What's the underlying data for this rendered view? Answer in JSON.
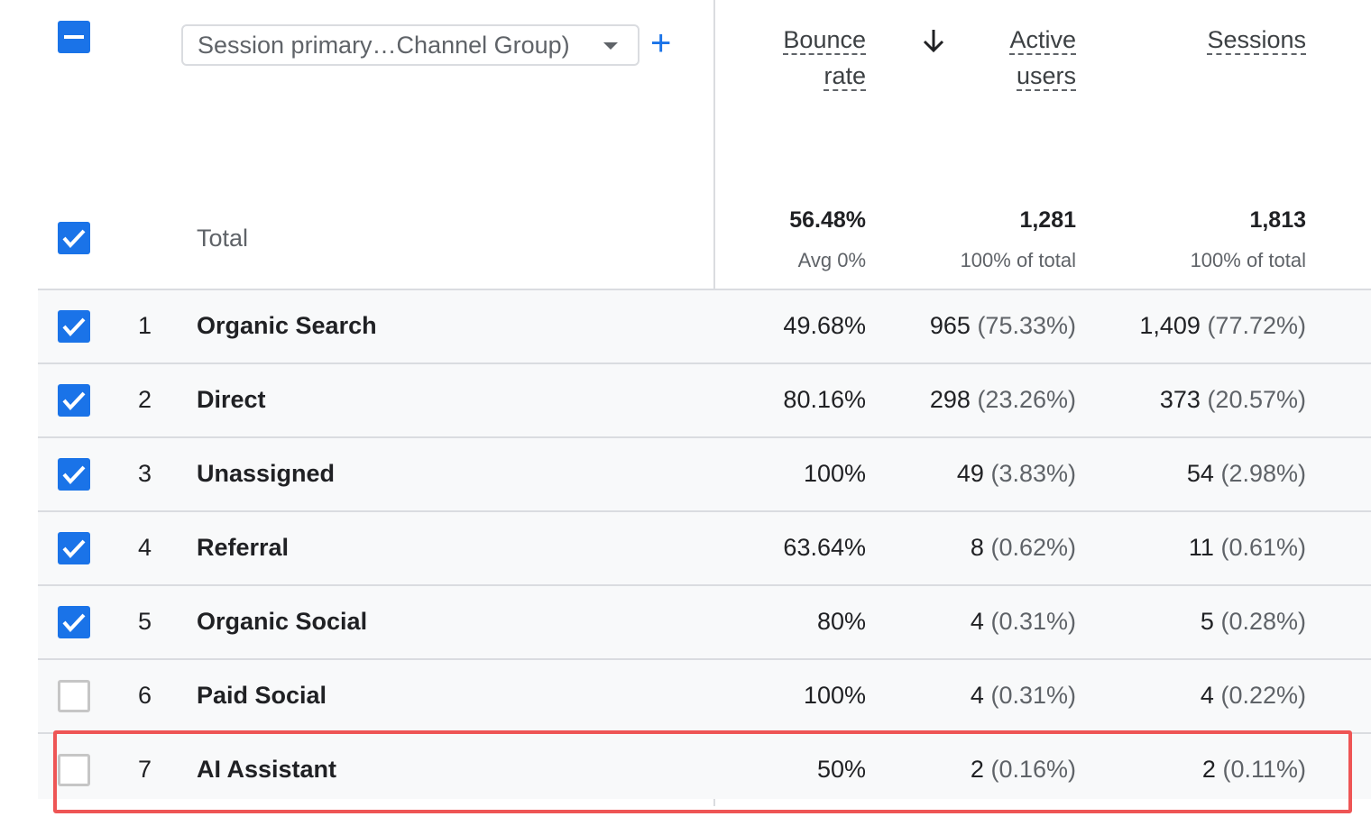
{
  "header": {
    "dimension_select": "Session primary…Channel Group)",
    "columns": {
      "bounce_rate": [
        "Bounce",
        "rate"
      ],
      "active_users": [
        "Active",
        "users"
      ],
      "sessions": [
        "Sessions"
      ]
    }
  },
  "total": {
    "label": "Total",
    "bounce_rate": "56.48%",
    "bounce_rate_sub": "Avg 0%",
    "active_users": "1,281",
    "active_users_sub": "100% of total",
    "sessions": "1,813",
    "sessions_sub": "100% of total"
  },
  "rows": [
    {
      "rank": "1",
      "name": "Organic Search",
      "checked": true,
      "bounce": "49.68%",
      "users": "965",
      "users_pct": "(75.33%)",
      "sessions": "1,409",
      "sessions_pct": "(77.72%)"
    },
    {
      "rank": "2",
      "name": "Direct",
      "checked": true,
      "bounce": "80.16%",
      "users": "298",
      "users_pct": "(23.26%)",
      "sessions": "373",
      "sessions_pct": "(20.57%)"
    },
    {
      "rank": "3",
      "name": "Unassigned",
      "checked": true,
      "bounce": "100%",
      "users": "49",
      "users_pct": "(3.83%)",
      "sessions": "54",
      "sessions_pct": "(2.98%)"
    },
    {
      "rank": "4",
      "name": "Referral",
      "checked": true,
      "bounce": "63.64%",
      "users": "8",
      "users_pct": "(0.62%)",
      "sessions": "11",
      "sessions_pct": "(0.61%)"
    },
    {
      "rank": "5",
      "name": "Organic Social",
      "checked": true,
      "bounce": "80%",
      "users": "4",
      "users_pct": "(0.31%)",
      "sessions": "5",
      "sessions_pct": "(0.28%)"
    },
    {
      "rank": "6",
      "name": "Paid Social",
      "checked": false,
      "bounce": "100%",
      "users": "4",
      "users_pct": "(0.31%)",
      "sessions": "4",
      "sessions_pct": "(0.22%)"
    },
    {
      "rank": "7",
      "name": "AI Assistant",
      "checked": false,
      "bounce": "50%",
      "users": "2",
      "users_pct": "(0.16%)",
      "sessions": "2",
      "sessions_pct": "(0.11%)"
    }
  ],
  "colors": {
    "accent": "#1a73e8",
    "highlight": "#ee5555"
  }
}
